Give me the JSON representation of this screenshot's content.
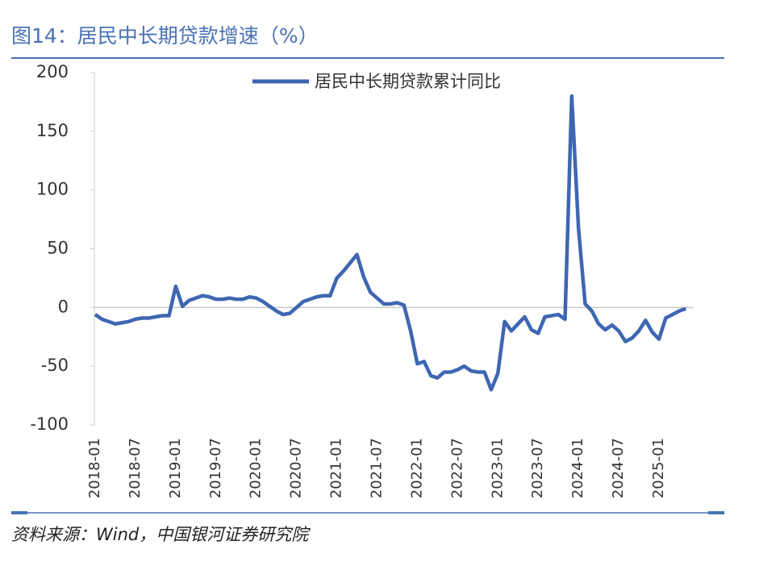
{
  "chart_data": {
    "type": "line",
    "title": "图14：居民中长期贷款增速（%）",
    "source": "资料来源：Wind，中国银河证券研究院",
    "categories": [
      "2018-01",
      null,
      null,
      null,
      null,
      null,
      "2018-07",
      null,
      null,
      null,
      null,
      null,
      "2019-01",
      null,
      null,
      null,
      null,
      null,
      "2019-07",
      null,
      null,
      null,
      null,
      null,
      "2020-01",
      null,
      null,
      null,
      null,
      null,
      "2020-07",
      null,
      null,
      null,
      null,
      null,
      "2021-01",
      null,
      null,
      null,
      null,
      null,
      "2021-07",
      null,
      null,
      null,
      null,
      null,
      "2022-01",
      null,
      null,
      null,
      null,
      null,
      "2022-07",
      null,
      null,
      null,
      null,
      null,
      "2023-01",
      null,
      null,
      null,
      null,
      null,
      "2023-07",
      null,
      null,
      null,
      null,
      null,
      "2024-01",
      null,
      null,
      null,
      null,
      null,
      "2024-07",
      null,
      null,
      null,
      null,
      null,
      "2025-01",
      null,
      null,
      null,
      null
    ],
    "series": [
      {
        "name": "居民中长期贷款累计同比",
        "color": "#3e66b2",
        "values": [
          -6,
          -10,
          -12,
          -14,
          -13,
          -12,
          -10,
          -9,
          -9,
          -8,
          -7,
          -7,
          18,
          1,
          6,
          8,
          10,
          9,
          7,
          7,
          8,
          7,
          7,
          9,
          8,
          5,
          1,
          -3,
          -6,
          -5,
          0,
          5,
          7,
          9,
          10,
          10,
          25,
          31,
          38,
          45,
          26,
          13,
          8,
          3,
          3,
          4,
          2,
          -20,
          -48,
          -46,
          -58,
          -60,
          -55,
          -55,
          -53,
          -50,
          -54,
          -55,
          -55,
          -70,
          -56,
          -12,
          -20,
          -14,
          -8,
          -19,
          -22,
          -8,
          -7,
          -6,
          -10,
          180,
          68,
          3,
          -3,
          -14,
          -19,
          -15,
          -20,
          -29,
          -26,
          -20,
          -11,
          -21,
          -27,
          -9,
          -6,
          -3,
          -1
        ]
      }
    ],
    "ylim": [
      -100,
      200
    ],
    "yticks": [
      -100,
      -50,
      0,
      50,
      100,
      150,
      200
    ],
    "legend": "top"
  }
}
